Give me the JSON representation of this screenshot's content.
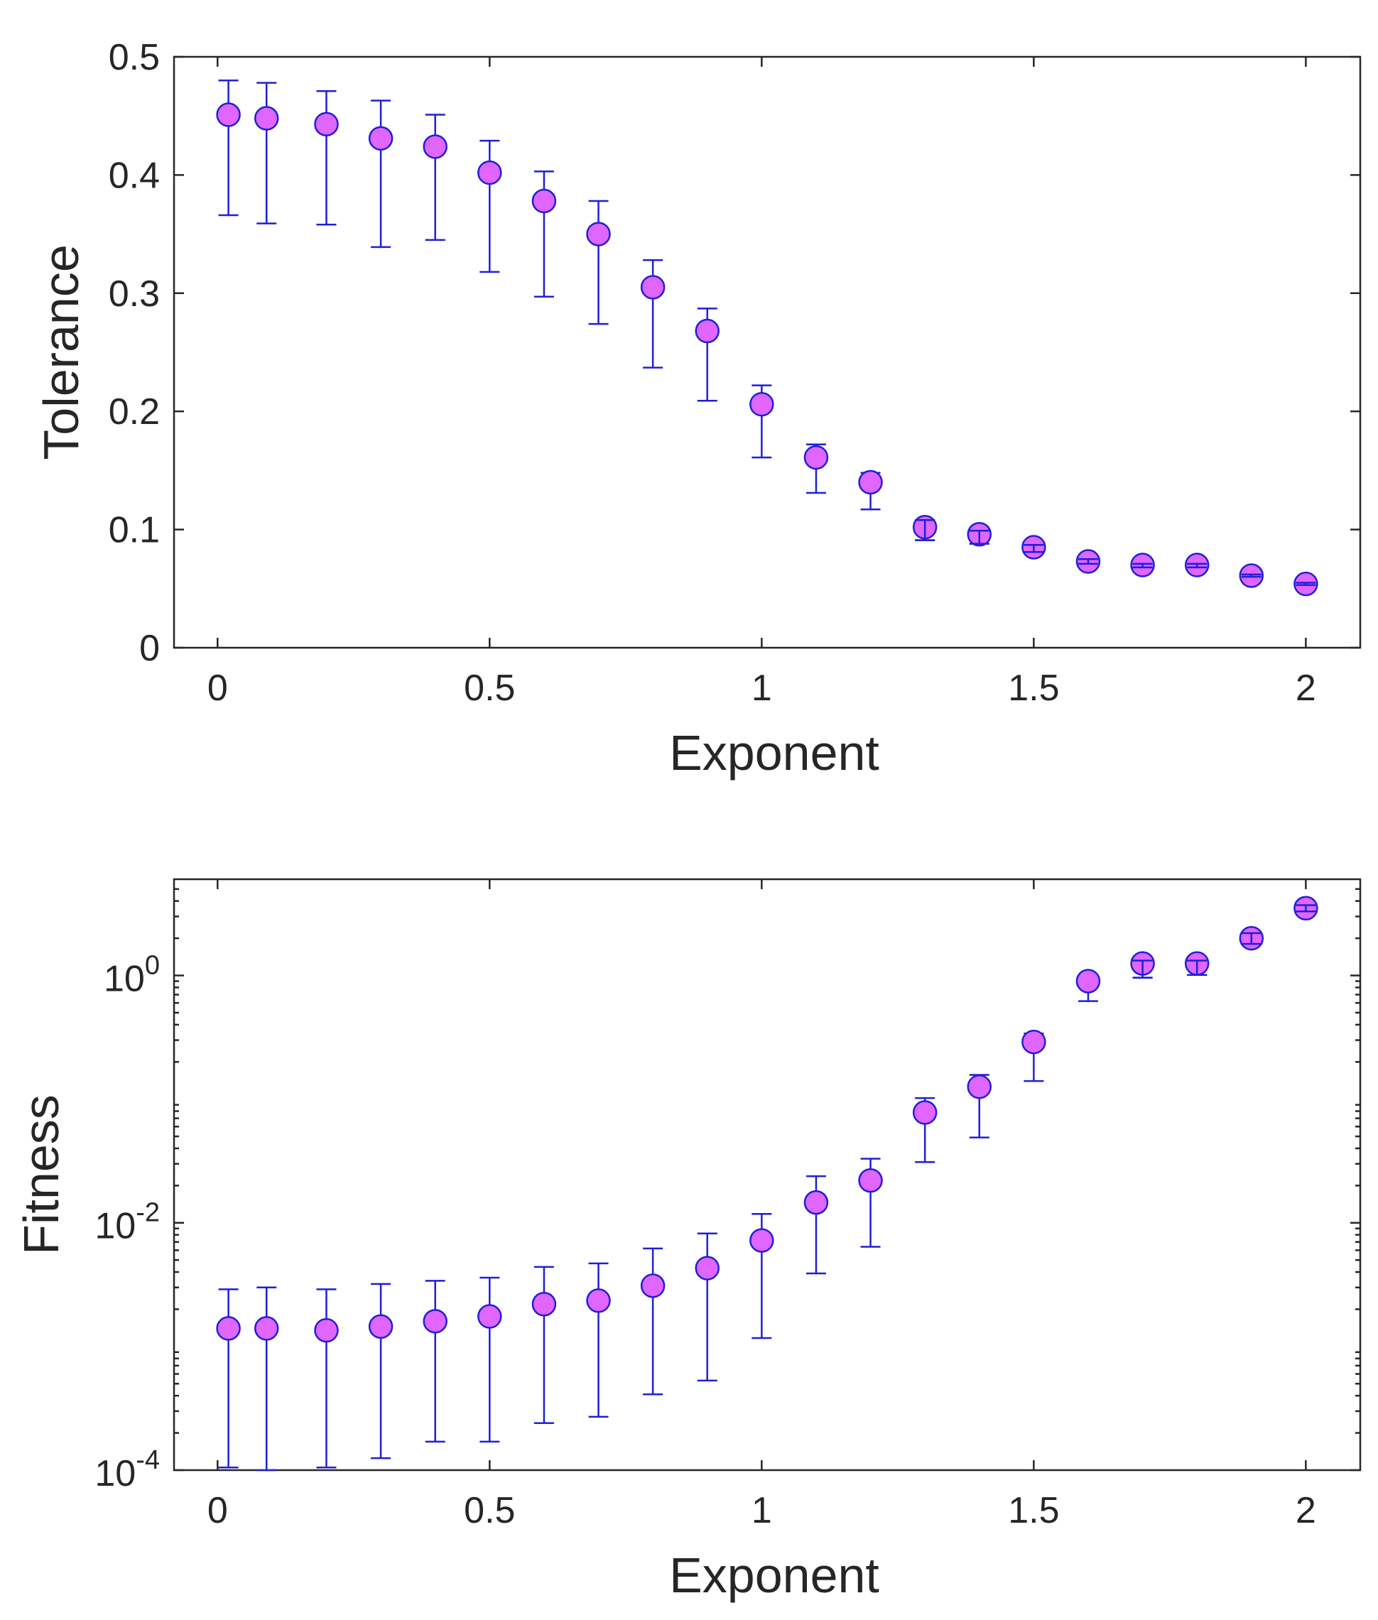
{
  "chart_data": [
    {
      "type": "scatter",
      "title": "",
      "xlabel": "Exponent",
      "ylabel": "Tolerance",
      "xlim": [
        -0.08,
        2.1
      ],
      "ylim": [
        0,
        0.5
      ],
      "yscale": "linear",
      "xticks": [
        0,
        0.5,
        1,
        1.5,
        2
      ],
      "xtick_labels": [
        "0",
        "0.5",
        "1",
        "1.5",
        "2"
      ],
      "yticks": [
        0,
        0.1,
        0.2,
        0.3,
        0.4,
        0.5
      ],
      "ytick_labels": [
        "0",
        "0.1",
        "0.2",
        "0.3",
        "0.4",
        "0.5"
      ],
      "grid": false,
      "marker_color": "#e066ff",
      "errorbar_color": "#1f1fd8",
      "x": [
        0.02,
        0.09,
        0.2,
        0.3,
        0.4,
        0.5,
        0.6,
        0.7,
        0.8,
        0.9,
        1.0,
        1.1,
        1.2,
        1.3,
        1.4,
        1.5,
        1.6,
        1.7,
        1.8,
        1.9,
        2.0
      ],
      "y": [
        0.451,
        0.448,
        0.443,
        0.431,
        0.424,
        0.402,
        0.378,
        0.35,
        0.305,
        0.268,
        0.206,
        0.161,
        0.14,
        0.102,
        0.096,
        0.085,
        0.073,
        0.07,
        0.07,
        0.061,
        0.054
      ],
      "y_err_lower": [
        0.366,
        0.359,
        0.358,
        0.339,
        0.345,
        0.318,
        0.297,
        0.274,
        0.237,
        0.209,
        0.161,
        0.131,
        0.117,
        0.091,
        0.088,
        0.081,
        0.071,
        0.068,
        0.068,
        0.06,
        0.053
      ],
      "y_err_upper": [
        0.48,
        0.478,
        0.471,
        0.463,
        0.451,
        0.429,
        0.403,
        0.378,
        0.328,
        0.287,
        0.222,
        0.172,
        0.148,
        0.108,
        0.099,
        0.087,
        0.075,
        0.071,
        0.071,
        0.062,
        0.055
      ]
    },
    {
      "type": "scatter",
      "title": "",
      "xlabel": "Exponent",
      "ylabel": "Fitness",
      "xlim": [
        -0.08,
        2.1
      ],
      "ylim": [
        0.0001,
        6
      ],
      "yscale": "log",
      "xticks": [
        0,
        0.5,
        1,
        1.5,
        2
      ],
      "xtick_labels": [
        "0",
        "0.5",
        "1",
        "1.5",
        "2"
      ],
      "yticks": [
        0.0001,
        0.01,
        1
      ],
      "ytick_labels": [
        {
          "base": "10",
          "exp": "-4"
        },
        {
          "base": "10",
          "exp": "-2"
        },
        {
          "base": "10",
          "exp": "0"
        }
      ],
      "grid": false,
      "marker_color": "#e066ff",
      "errorbar_color": "#1f1fd8",
      "x": [
        0.02,
        0.09,
        0.2,
        0.3,
        0.4,
        0.5,
        0.6,
        0.7,
        0.8,
        0.9,
        1.0,
        1.1,
        1.2,
        1.3,
        1.4,
        1.5,
        1.6,
        1.7,
        1.8,
        1.9,
        2.0
      ],
      "y": [
        0.0014,
        0.0014,
        0.00135,
        0.00145,
        0.0016,
        0.00175,
        0.0022,
        0.00235,
        0.0031,
        0.0043,
        0.0072,
        0.0146,
        0.022,
        0.078,
        0.126,
        0.29,
        0.9,
        1.25,
        1.25,
        2.0,
        3.5
      ],
      "y_err_lower": [
        0.000105,
        0.0001,
        0.000105,
        0.000125,
        0.00017,
        0.00017,
        0.00024,
        0.00027,
        0.00041,
        0.00053,
        0.00117,
        0.0039,
        0.0064,
        0.031,
        0.049,
        0.14,
        0.62,
        0.96,
        1.01,
        1.8,
        3.3
      ],
      "y_err_upper": [
        0.0029,
        0.003,
        0.0029,
        0.0032,
        0.0034,
        0.0036,
        0.0044,
        0.0047,
        0.0062,
        0.0082,
        0.0118,
        0.0238,
        0.033,
        0.102,
        0.157,
        0.34,
        1.0,
        1.32,
        1.32,
        2.2,
        3.7
      ]
    }
  ]
}
